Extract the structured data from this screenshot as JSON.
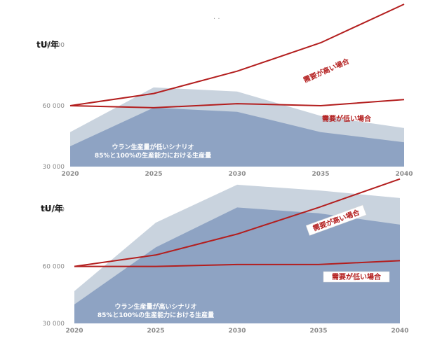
{
  "stray_mark": "· ·",
  "colors": {
    "upper_band": "#c9d3de",
    "lower_band": "#8ea3c3",
    "demand_line": "#b31e1e",
    "label_fill": "#ffffff"
  },
  "chart_data": [
    {
      "type": "area",
      "unit_label": "tU/年",
      "x": [
        2020,
        2025,
        2030,
        2035,
        2040
      ],
      "xticks": [
        "2020",
        "2025",
        "2030",
        "2035",
        "2040"
      ],
      "yticks": [
        {
          "v": 30000,
          "label": "30 000"
        },
        {
          "v": 60000,
          "label": "60 000"
        },
        {
          "v": 90000,
          "label": "90 000"
        }
      ],
      "ylim": [
        30000,
        100000
      ],
      "scenario_lines": [
        "ウラン生産量が低いシナリオ",
        "85%と100%の生産能力における生産量"
      ],
      "areas": [
        {
          "role": "100%",
          "values": [
            47000,
            69000,
            67000,
            55000,
            49000
          ]
        },
        {
          "role": "85%",
          "values": [
            40000,
            59000,
            57000,
            47000,
            42000
          ]
        }
      ],
      "series": [
        {
          "name": "需要が高い場合",
          "values": [
            60000,
            66000,
            77000,
            91000,
            110000
          ]
        },
        {
          "name": "需要が低い場合",
          "values": [
            60000,
            59000,
            61000,
            60000,
            63000
          ]
        }
      ],
      "labels_boxed": false
    },
    {
      "type": "area",
      "unit_label": "tU/年",
      "x": [
        2020,
        2025,
        2030,
        2035,
        2040
      ],
      "xticks": [
        "2020",
        "2025",
        "2030",
        "2035",
        "2040"
      ],
      "yticks": [
        {
          "v": 30000,
          "label": "30 000"
        },
        {
          "v": 60000,
          "label": "60 000"
        },
        {
          "v": 90000,
          "label": "90 000"
        }
      ],
      "ylim": [
        30000,
        100000
      ],
      "scenario_lines": [
        "ウラン生産量が高いシナリオ",
        "85%と100%の生産能力における生産量"
      ],
      "areas": [
        {
          "role": "100%",
          "values": [
            47000,
            83000,
            103000,
            100000,
            96000
          ]
        },
        {
          "role": "85%",
          "values": [
            40000,
            70000,
            91000,
            88000,
            82000
          ]
        }
      ],
      "series": [
        {
          "name": "需要が高い場合",
          "values": [
            60000,
            66000,
            77000,
            91000,
            106000
          ]
        },
        {
          "name": "需要が低い場合",
          "values": [
            60000,
            60000,
            61000,
            61000,
            63000
          ]
        }
      ],
      "labels_boxed": true
    }
  ]
}
